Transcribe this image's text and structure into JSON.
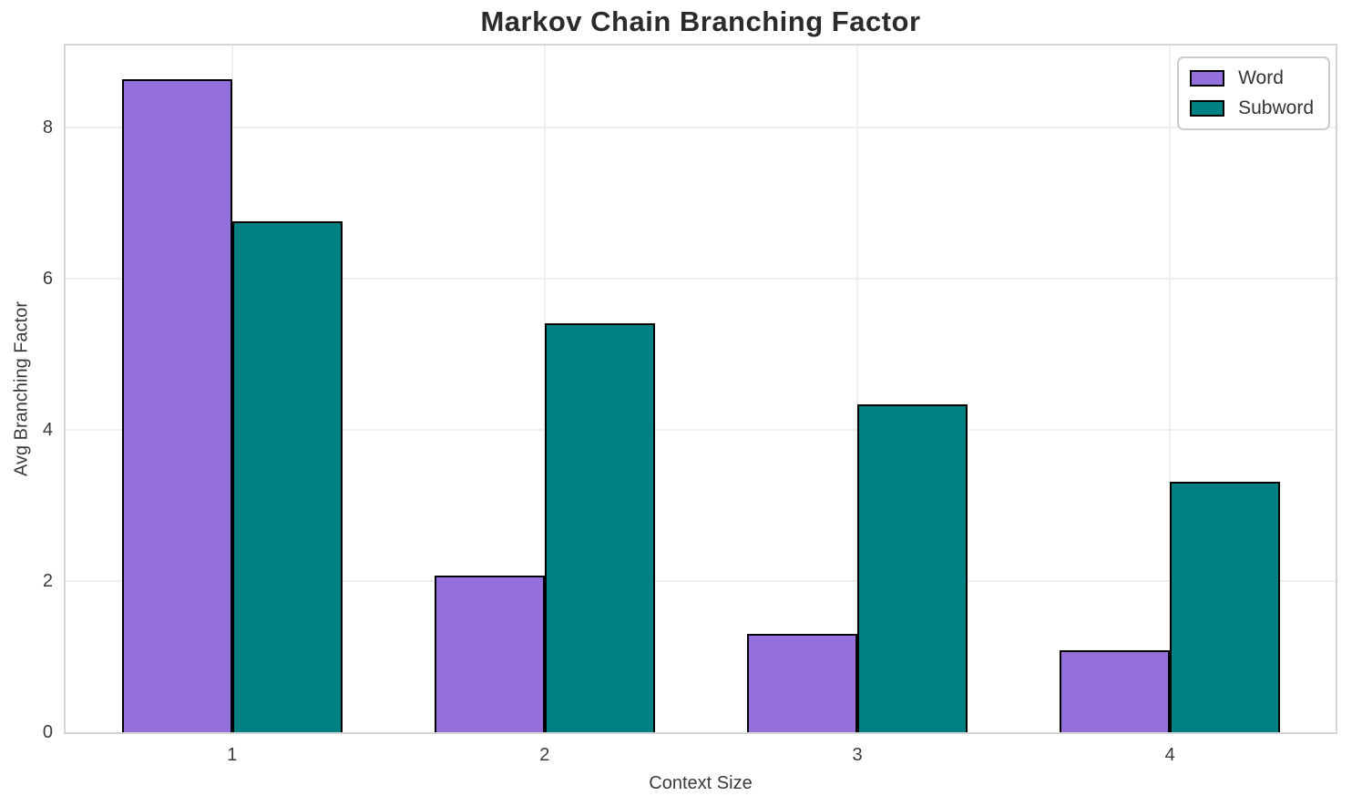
{
  "chart_data": {
    "type": "bar",
    "title": "Markov Chain Branching Factor",
    "xlabel": "Context Size",
    "ylabel": "Avg Branching Factor",
    "categories": [
      "1",
      "2",
      "3",
      "4"
    ],
    "series": [
      {
        "name": "Word",
        "color": "#9370DB",
        "values": [
          8.64,
          2.07,
          1.3,
          1.09
        ]
      },
      {
        "name": "Subword",
        "color": "#008080",
        "values": [
          6.76,
          5.41,
          4.33,
          3.31
        ]
      }
    ],
    "yticks": [
      0,
      2,
      4,
      6,
      8
    ],
    "ylim": [
      0,
      9.08
    ],
    "grid": true,
    "legend_position": "upper right",
    "bar_edgecolor": "#000000",
    "style": {
      "grid_color": "#efefef",
      "spine_color": "#d5d5d5",
      "tick_color": "#3a3a3a",
      "title_color": "#2b2b2b"
    }
  }
}
